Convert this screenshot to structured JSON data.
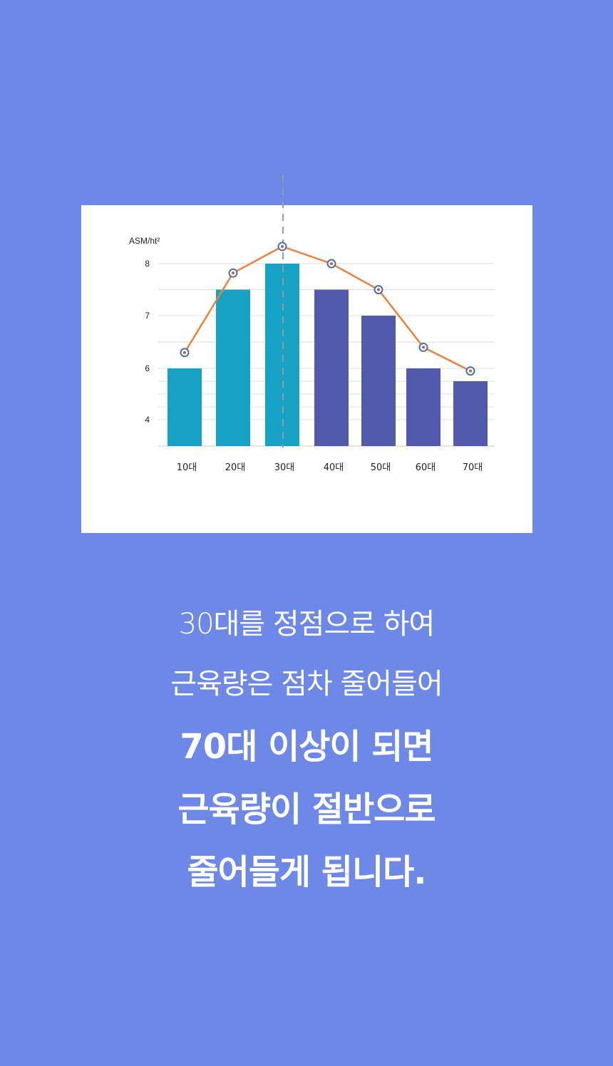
{
  "chart_data": {
    "type": "bar",
    "ylabel": "ASM/ht²",
    "categories": [
      "10대",
      "20대",
      "30대",
      "40대",
      "50대",
      "60대",
      "70대"
    ],
    "y_ticks": [
      4,
      6,
      7,
      8
    ],
    "series": [
      {
        "type": "bar",
        "values": [
          6,
          7.5,
          8,
          7.5,
          7,
          6,
          5.5
        ],
        "colors": [
          "#16a2c4",
          "#16a2c4",
          "#16a2c4",
          "#5159ad",
          "#5159ad",
          "#5159ad",
          "#5159ad"
        ]
      },
      {
        "type": "line",
        "values": [
          6.3,
          7.82,
          8.33,
          8,
          7.5,
          6.4,
          5.9
        ],
        "color": "#f07d31"
      }
    ],
    "highlight_category": "30대",
    "grid": true
  },
  "caption": {
    "lines": [
      {
        "text": "30대를 정점으로 하여",
        "bold": false
      },
      {
        "text": "근육량은 점차 줄어들어",
        "bold": false
      },
      {
        "text": "70대 이상이 되면",
        "bold": true
      },
      {
        "text": "근육량이 절반으로",
        "bold": true
      },
      {
        "text": "줄어들게 됩니다.",
        "bold": true
      }
    ]
  },
  "colors": {
    "background": "#6d88e6",
    "card": "#ffffff",
    "bar_young": "#16a2c4",
    "bar_old": "#5159ad",
    "line": "#f07d31",
    "marker_ring": "#4a6fae",
    "gridline": "#dddddd",
    "highlight_line": "#9a9a9a"
  }
}
